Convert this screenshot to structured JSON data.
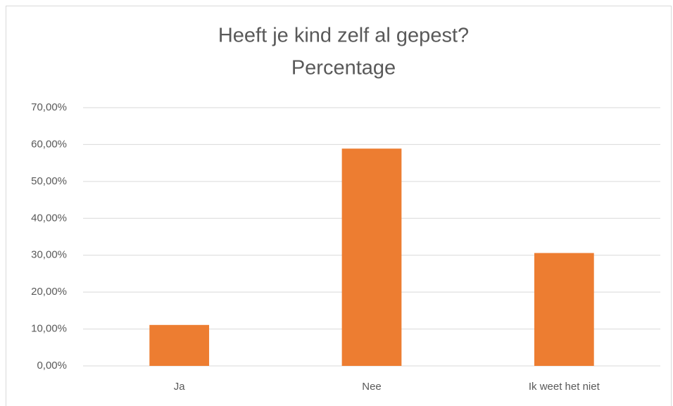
{
  "chart_data": {
    "type": "bar",
    "title": "Heeft je kind zelf al gepest?",
    "subtitle": "Percentage",
    "categories": [
      "Ja",
      "Nee",
      "Ik weet het niet"
    ],
    "values": [
      11.1,
      58.9,
      30.6
    ],
    "color": "#ed7d31",
    "ylim": [
      0,
      70
    ],
    "yticks": [
      {
        "value": 0,
        "label": "0,00%"
      },
      {
        "value": 10,
        "label": "10,00%"
      },
      {
        "value": 20,
        "label": "20,00%"
      },
      {
        "value": 30,
        "label": "30,00%"
      },
      {
        "value": 40,
        "label": "40,00%"
      },
      {
        "value": 50,
        "label": "50,00%"
      },
      {
        "value": 60,
        "label": "60,00%"
      },
      {
        "value": 70,
        "label": "70,00%"
      }
    ],
    "grid": true
  }
}
